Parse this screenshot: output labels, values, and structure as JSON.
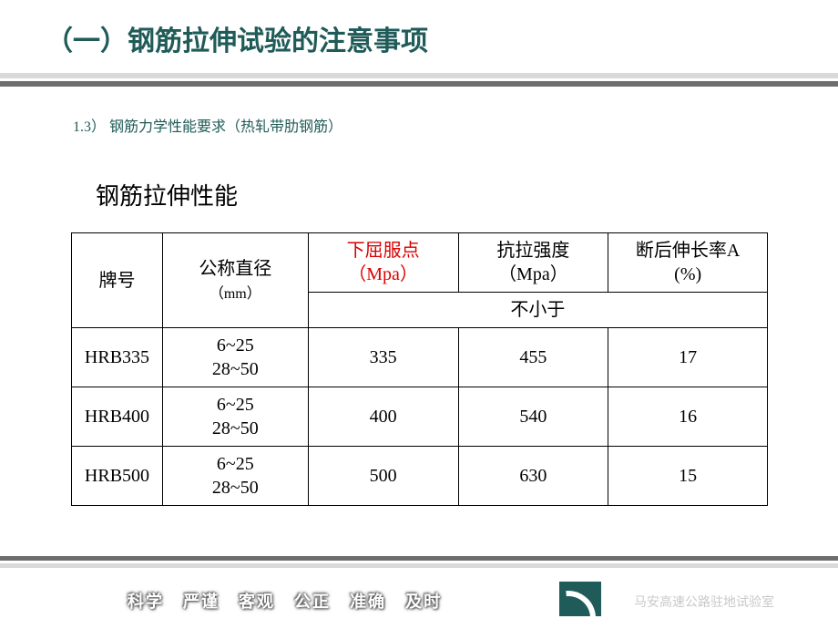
{
  "heading": "（一）钢筋拉伸试验的注意事项",
  "subhead": "1.3） 钢筋力学性能要求（热轧带肋钢筋）",
  "section_title": "钢筋拉伸性能",
  "table": {
    "headers": {
      "grade": "牌号",
      "diameter_label": "公称直径",
      "diameter_unit": "（mm）",
      "yield_label": "下屈服点",
      "yield_unit": "（Mpa）",
      "tensile_label": "抗拉强度",
      "tensile_unit": "（Mpa）",
      "elong_label": "断后伸长率A",
      "elong_unit": "(%)",
      "not_less": "不小于"
    },
    "rows": [
      {
        "grade": "HRB335",
        "dia1": "6~25",
        "dia2": "28~50",
        "yield": "335",
        "tensile": "455",
        "elong": "17"
      },
      {
        "grade": "HRB400",
        "dia1": "6~25",
        "dia2": "28~50",
        "yield": "400",
        "tensile": "540",
        "elong": "16"
      },
      {
        "grade": "HRB500",
        "dia1": "6~25",
        "dia2": "28~50",
        "yield": "500",
        "tensile": "630",
        "elong": "15"
      }
    ]
  },
  "footer": {
    "motto": [
      "科学",
      "严谨",
      "客观",
      "公正",
      "准确",
      "及时"
    ],
    "org": "马安高速公路驻地试验室"
  },
  "colors": {
    "accent": "#1f5b58",
    "highlight": "#d90000",
    "divider_light": "#d9d9d9",
    "divider_dark": "#6e6e6e",
    "org_text": "#c9c9c9"
  }
}
